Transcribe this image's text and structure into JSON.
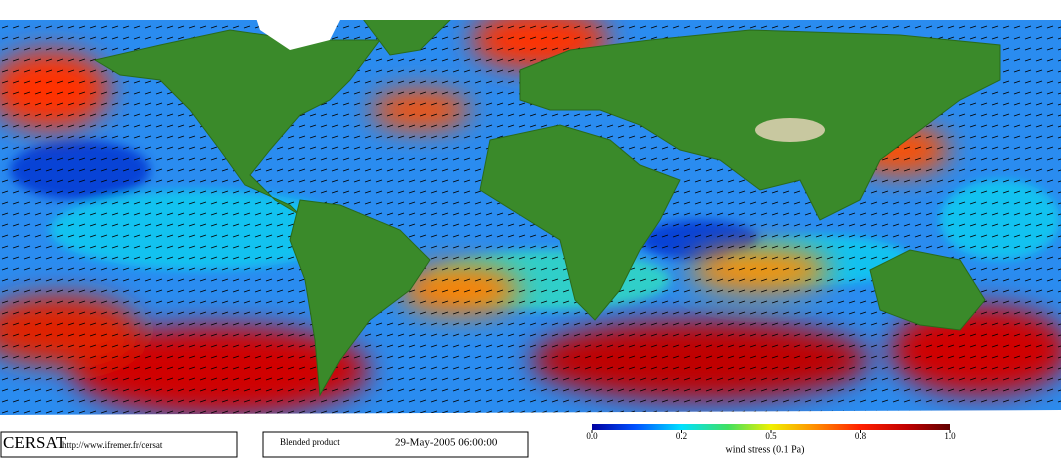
{
  "footer": {
    "logo": "CERSAT",
    "url": "http://www.ifremer.fr/cersat",
    "product": "Blended product",
    "date": "29-May-2005 06:00:00"
  },
  "colorbar": {
    "label": "wind stress (0.1 Pa)",
    "ticks": [
      {
        "value": 0,
        "label": "0.0"
      },
      0.2,
      0.5,
      0.8,
      {
        "value": 1,
        "label": "1.0"
      }
    ]
  }
}
